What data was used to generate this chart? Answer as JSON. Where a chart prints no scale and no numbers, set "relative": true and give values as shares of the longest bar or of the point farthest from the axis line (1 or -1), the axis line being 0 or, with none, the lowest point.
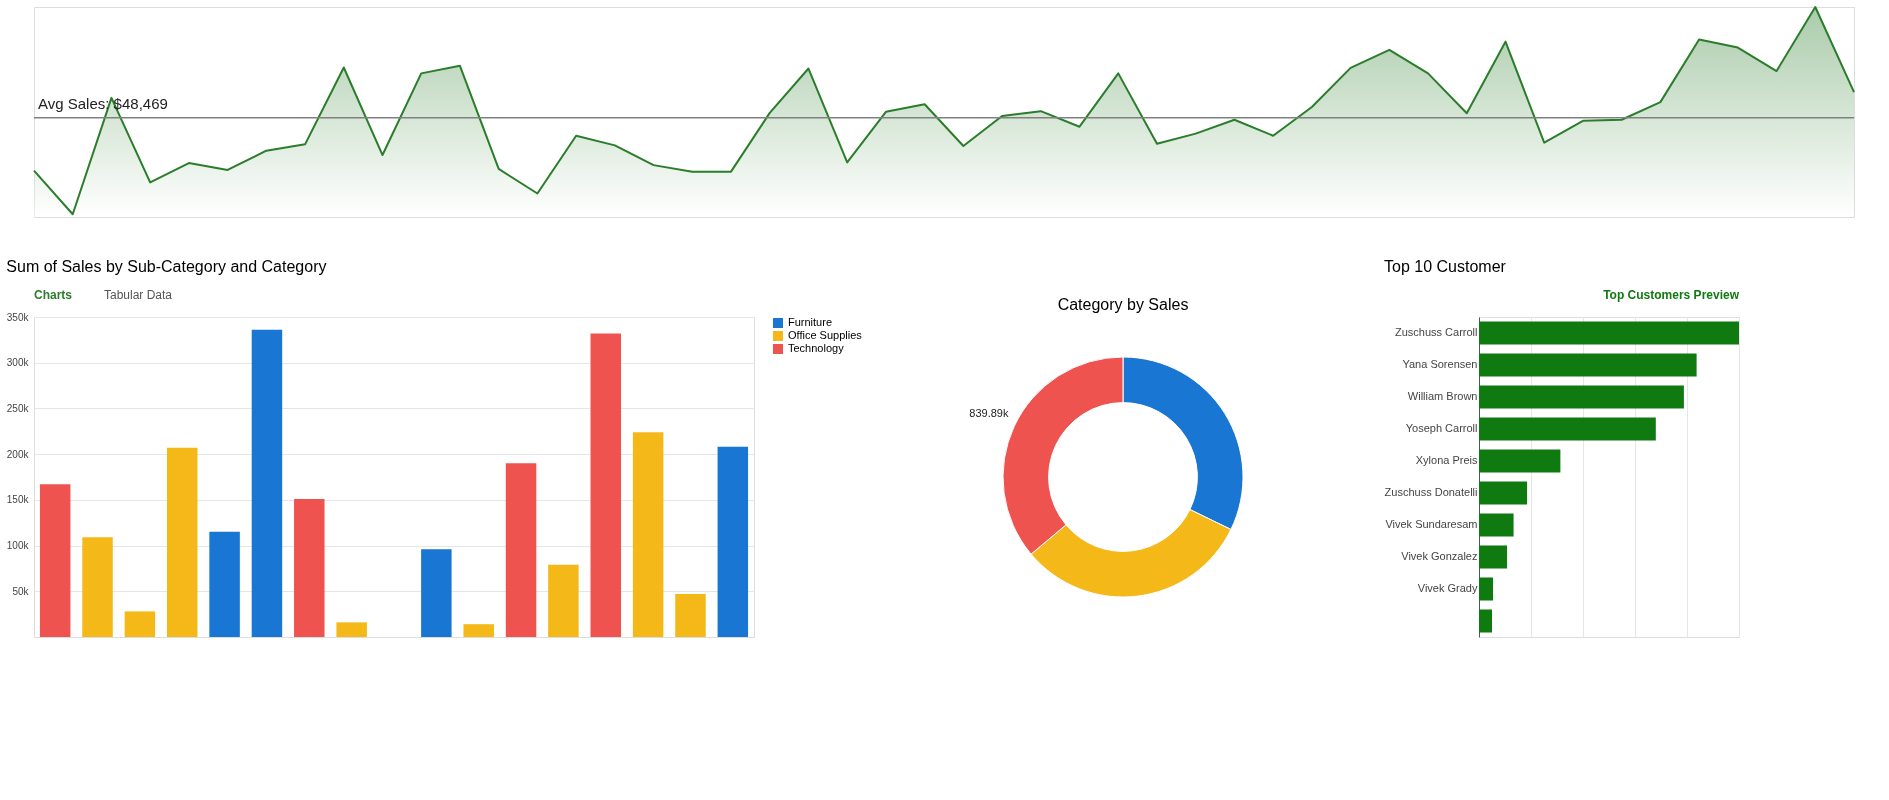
{
  "chart_data": [
    {
      "type": "area",
      "relative": true,
      "categories": [
        null,
        null,
        null,
        null,
        null,
        null,
        null,
        null,
        null,
        null,
        null,
        null,
        null,
        null,
        null,
        null,
        null,
        null,
        null,
        null,
        null,
        null,
        null,
        null,
        null,
        null,
        null,
        null,
        null,
        null,
        null,
        null,
        null,
        null,
        null,
        null,
        null,
        null,
        null,
        null,
        null,
        null,
        null,
        null,
        null,
        null,
        null,
        null
      ],
      "series": [
        {
          "color": "#2a7d2a",
          "values": [
            0.221,
            0.013,
            0.567,
            0.165,
            0.257,
            0.224,
            0.316,
            0.346,
            0.712,
            0.295,
            0.684,
            0.72,
            0.229,
            0.112,
            0.387,
            0.341,
            0.247,
            0.216,
            0.216,
            0.496,
            0.707,
            0.26,
            0.501,
            0.537,
            0.338,
            0.481,
            0.504,
            0.43,
            0.684,
            0.349,
            0.397,
            0.463,
            0.387,
            0.524,
            0.71,
            0.796,
            0.684,
            0.494,
            0.835,
            0.354,
            0.458,
            0.463,
            0.547,
            0.845,
            0.807,
            0.695,
            1,
            0.595
          ]
        }
      ],
      "ref_lines": [
        {
          "axis": "y",
          "value": 0.473,
          "color": "#808080"
        }
      ],
      "annotations": [
        "Avg Sales: $48,469"
      ]
    },
    {
      "type": "bar",
      "title": "Sum of Sales by Sub-Category and Category",
      "annotations": [
        "Charts",
        "Tabular Data"
      ],
      "categories": [
        null,
        null,
        null,
        null,
        null,
        null,
        null,
        null,
        null,
        null,
        null,
        null,
        null,
        null,
        null,
        null,
        null
      ],
      "series": [
        {
          "name": "Furniture",
          "color": "#1976d2",
          "values": [
            null,
            null,
            null,
            null,
            115000,
            336000,
            null,
            null,
            null,
            96000,
            null,
            null,
            null,
            null,
            null,
            null,
            208000
          ]
        },
        {
          "name": "Office Supplies",
          "color": "#f4b919",
          "values": [
            null,
            109000,
            28000,
            207000,
            null,
            null,
            null,
            16000,
            null,
            null,
            14000,
            null,
            79000,
            null,
            224000,
            47000,
            null
          ]
        },
        {
          "name": "Technology",
          "color": "#ef5350",
          "values": [
            167000,
            null,
            null,
            null,
            null,
            null,
            151000,
            null,
            null,
            null,
            null,
            190000,
            null,
            332000,
            null,
            null,
            null
          ]
        }
      ],
      "ylim": [
        0,
        350000
      ],
      "yticks": [
        {
          "value": 50000,
          "label": "50k"
        },
        {
          "value": 100000,
          "label": "100k"
        },
        {
          "value": 150000,
          "label": "150k"
        },
        {
          "value": 200000,
          "label": "200k"
        },
        {
          "value": 250000,
          "label": "250k"
        },
        {
          "value": 300000,
          "label": "300k"
        },
        {
          "value": 350000,
          "label": "350k"
        }
      ],
      "grid": "y",
      "legend": "top right"
    },
    {
      "type": "donut",
      "title": "Category by Sales",
      "categories": [
        null,
        null,
        null
      ],
      "values": [
        749,
        737,
        839.89
      ],
      "colors": [
        "#1976d2",
        "#f4b919",
        "#ef5350"
      ],
      "value_labels": [
        null,
        null,
        "839.89k"
      ]
    },
    {
      "type": "bar",
      "orientation": "horizontal",
      "relative": true,
      "title": "Top 10 Customer",
      "annotations": [
        "Top Customers Preview"
      ],
      "categories": [
        "Zuschuss Carroll",
        "Yana Sorensen",
        "William Brown",
        "Yoseph Carroll",
        "Xylona Preis",
        "Zuschuss Donatelli",
        "Vivek Sundaresam",
        "Vivek Gonzalez",
        "Vivek Grady",
        null
      ],
      "values": [
        1,
        0.837,
        0.788,
        0.68,
        0.313,
        0.185,
        0.133,
        0.108,
        0.054,
        0.05
      ],
      "color": "#0f7a0f",
      "grid": "x"
    }
  ]
}
